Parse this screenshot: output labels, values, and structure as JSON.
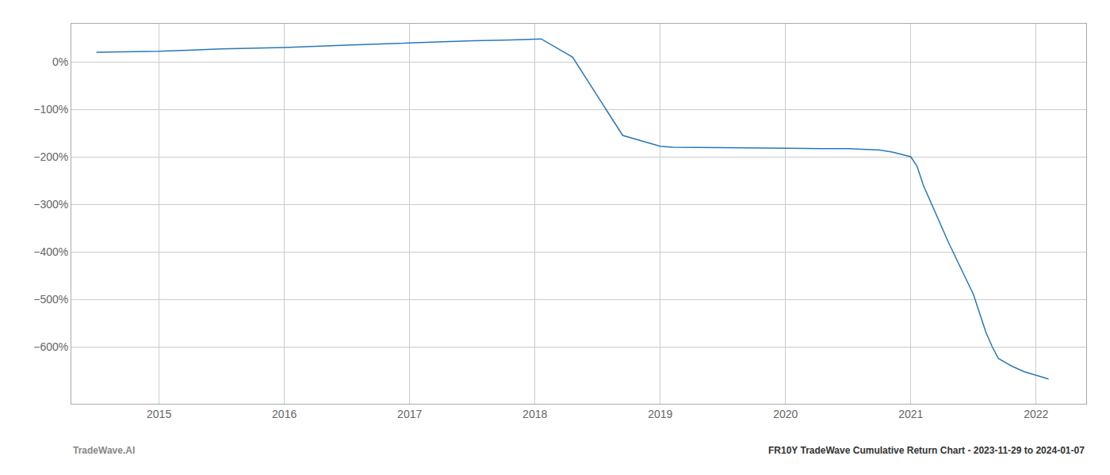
{
  "chart_data": {
    "type": "line",
    "x": [
      2014.5,
      2015.0,
      2015.5,
      2016.0,
      2016.5,
      2017.0,
      2017.5,
      2017.8,
      2018.0,
      2018.05,
      2018.3,
      2018.7,
      2019.0,
      2019.1,
      2019.5,
      2019.8,
      2020.0,
      2020.3,
      2020.5,
      2020.7,
      2020.75,
      2020.85,
      2021.0,
      2021.05,
      2021.1,
      2021.3,
      2021.5,
      2021.6,
      2021.65,
      2021.7,
      2021.8,
      2021.9,
      2022.0,
      2022.1
    ],
    "values": [
      20,
      22,
      27,
      30,
      35,
      40,
      44,
      46,
      48,
      48,
      10,
      -155,
      -178,
      -180,
      -181,
      -182,
      -183,
      -183,
      -183,
      -185,
      -186,
      -190,
      -200,
      -220,
      -260,
      -380,
      -490,
      -570,
      -600,
      -625,
      -640,
      -652,
      -660,
      -668
    ],
    "color": "#2878b8",
    "xlim": [
      2014.3,
      2022.4
    ],
    "xticks": [
      2015,
      2016,
      2017,
      2018,
      2019,
      2020,
      2021,
      2022
    ],
    "ylim": [
      -720,
      80
    ],
    "yticks": [
      {
        "value": 0,
        "label": "0%"
      },
      {
        "value": -100,
        "label": "−100%"
      },
      {
        "value": -200,
        "label": "−200%"
      },
      {
        "value": -300,
        "label": "−300%"
      },
      {
        "value": -400,
        "label": "−400%"
      },
      {
        "value": -500,
        "label": "−500%"
      },
      {
        "value": -600,
        "label": "−600%"
      }
    ],
    "grid": true,
    "annotations": [
      "TradeWave.AI",
      "FR10Y TradeWave Cumulative Return Chart - 2023-11-29 to 2024-01-07"
    ]
  }
}
